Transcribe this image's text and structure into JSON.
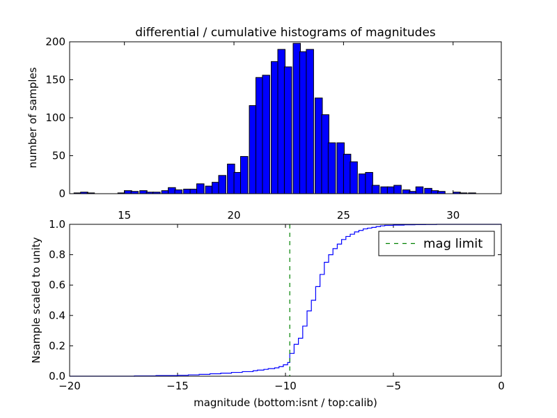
{
  "chart_data": [
    {
      "type": "bar",
      "title": "differential / cumulative histograms of magnitudes",
      "ylabel": "number of samples",
      "xlabel": "",
      "xlim": [
        12.5,
        32.2
      ],
      "ylim": [
        0,
        200
      ],
      "xticks": [
        15,
        20,
        25,
        30
      ],
      "yticks": [
        0,
        50,
        100,
        150,
        200
      ],
      "tick_position": "x ticks labeled below axes",
      "bar_color": "#0000ff",
      "bin_width": 0.3333,
      "bins_start": [
        12.7,
        13.0,
        13.3,
        13.7,
        14.0,
        14.3,
        14.7,
        15.0,
        15.3,
        15.7,
        16.0,
        16.3,
        16.7,
        17.0,
        17.3,
        17.7,
        18.0,
        18.3,
        18.7,
        19.0,
        19.3,
        19.7,
        20.0,
        20.3,
        20.7,
        21.0,
        21.3,
        21.7,
        22.0,
        22.3,
        22.7,
        23.0,
        23.3,
        23.7,
        24.0,
        24.3,
        24.7,
        25.0,
        25.3,
        25.7,
        26.0,
        26.3,
        26.7,
        27.0,
        27.3,
        27.7,
        28.0,
        28.3,
        28.7,
        29.0,
        29.3,
        29.7,
        30.0,
        30.3,
        30.7,
        31.0,
        31.3,
        31.7
      ],
      "values": [
        1,
        2,
        1,
        0,
        0,
        0,
        1,
        4,
        3,
        4,
        2,
        2,
        4,
        8,
        5,
        6,
        6,
        13,
        10,
        15,
        24,
        39,
        28,
        49,
        116,
        153,
        156,
        174,
        190,
        167,
        198,
        187,
        190,
        126,
        104,
        67,
        67,
        52,
        42,
        26,
        28,
        11,
        9,
        9,
        11,
        5,
        3,
        9,
        7,
        4,
        3,
        0,
        2,
        1,
        1,
        0,
        0,
        0
      ]
    },
    {
      "type": "line",
      "step": true,
      "xlabel": "magnitude (bottom:isnt / top:calib)",
      "ylabel": "Nsample scaled to unity",
      "xlim": [
        -20,
        0
      ],
      "ylim": [
        0,
        1
      ],
      "xticks": [
        -20,
        -15,
        -10,
        -5,
        0
      ],
      "xtick_labels": [
        "−20",
        "−15",
        "−10",
        "−5",
        "0"
      ],
      "yticks": [
        0.0,
        0.2,
        0.4,
        0.6,
        0.8,
        1.0
      ],
      "ytick_labels": [
        "0.0",
        "0.2",
        "0.4",
        "0.6",
        "0.8",
        "1.0"
      ],
      "series": [
        {
          "color": "#0000ff",
          "style": "solid",
          "x": [
            -20.0,
            -17.0,
            -16.0,
            -15.0,
            -14.5,
            -14.0,
            -13.5,
            -13.0,
            -12.5,
            -12.0,
            -11.5,
            -11.3,
            -11.0,
            -10.8,
            -10.5,
            -10.3,
            -10.1,
            -9.9,
            -9.8,
            -9.6,
            -9.4,
            -9.2,
            -9.0,
            -8.8,
            -8.6,
            -8.4,
            -8.2,
            -8.0,
            -7.8,
            -7.6,
            -7.4,
            -7.2,
            -7.0,
            -6.8,
            -6.6,
            -6.4,
            -6.2,
            -6.0,
            -5.8,
            -5.6,
            -5.4,
            -5.0,
            -4.5,
            -4.0,
            -3.5,
            -3.0,
            -2.5,
            -1.0,
            0.0
          ],
          "values": [
            0.0,
            0.002,
            0.004,
            0.006,
            0.009,
            0.012,
            0.016,
            0.02,
            0.025,
            0.03,
            0.036,
            0.04,
            0.045,
            0.05,
            0.055,
            0.063,
            0.075,
            0.09,
            0.15,
            0.21,
            0.25,
            0.33,
            0.43,
            0.5,
            0.59,
            0.67,
            0.75,
            0.8,
            0.84,
            0.87,
            0.9,
            0.92,
            0.935,
            0.95,
            0.96,
            0.97,
            0.975,
            0.98,
            0.985,
            0.99,
            0.993,
            0.995,
            0.997,
            0.998,
            0.999,
            1.0,
            1.0,
            1.0,
            1.0
          ]
        },
        {
          "name": "mag limit",
          "color": "#008000",
          "style": "dashed",
          "type": "vline",
          "x": -9.8
        }
      ],
      "legend_position": "top-right"
    }
  ]
}
